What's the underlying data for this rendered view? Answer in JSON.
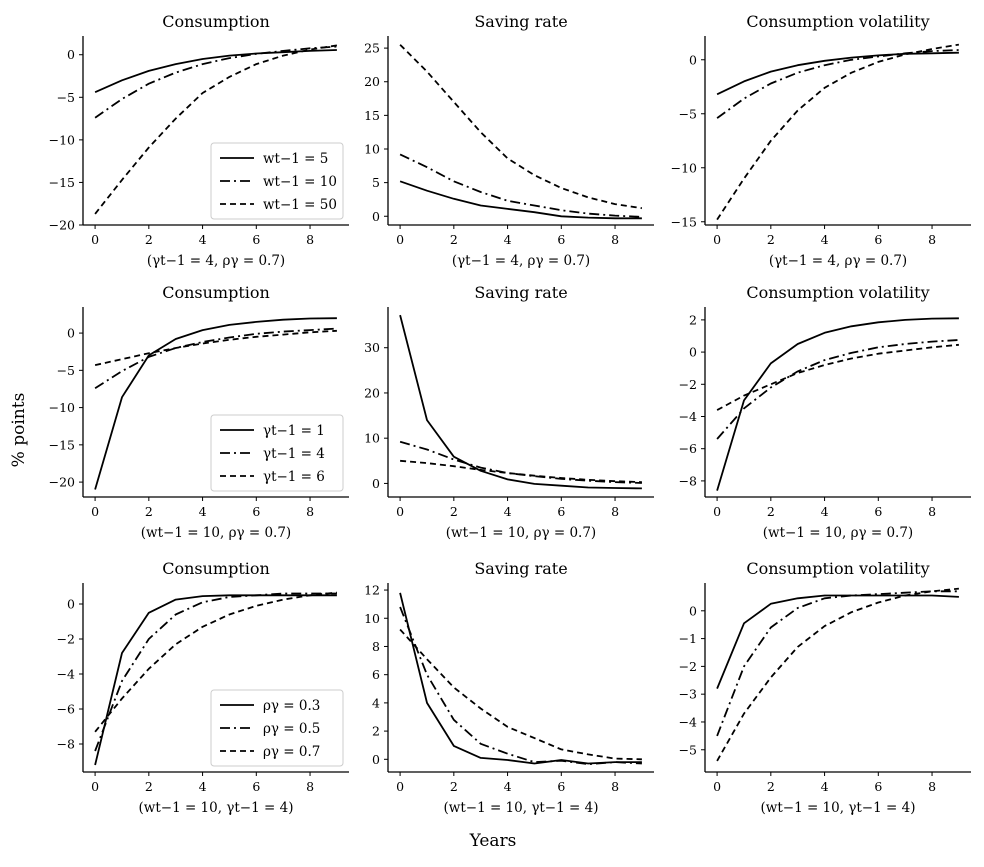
{
  "figure": {
    "ylabel": "% points",
    "xlabel": "Years"
  },
  "chart_data": [
    {
      "type": "line",
      "title": "Consumption",
      "subtitle": "(γt−1 = 4, ργ = 0.7)",
      "xlim": [
        -0.45,
        9.45
      ],
      "ylim": [
        -20,
        2.2
      ],
      "xticks": [
        0,
        2,
        4,
        6,
        8
      ],
      "yticks": [
        0,
        -5,
        -10,
        -15,
        -20
      ],
      "ytick_labels": [
        "0",
        "−5",
        "−10",
        "−15",
        "−20"
      ],
      "x": [
        0,
        1,
        2,
        3,
        4,
        5,
        6,
        7,
        8,
        9
      ],
      "legend": "bottom-right",
      "series": [
        {
          "name": "wt−1 = 5",
          "style": "solid",
          "values": [
            -4.4,
            -3.0,
            -1.9,
            -1.1,
            -0.5,
            -0.1,
            0.15,
            0.3,
            0.45,
            0.55
          ]
        },
        {
          "name": "wt−1 = 10",
          "style": "dashdot",
          "values": [
            -7.4,
            -5.2,
            -3.4,
            -2.1,
            -1.1,
            -0.4,
            0.1,
            0.45,
            0.75,
            0.95
          ]
        },
        {
          "name": "wt−1 = 50",
          "style": "dashed",
          "values": [
            -18.7,
            -14.7,
            -10.9,
            -7.5,
            -4.5,
            -2.6,
            -1.1,
            -0.1,
            0.6,
            1.1
          ]
        }
      ]
    },
    {
      "type": "line",
      "title": "Saving rate",
      "subtitle": "(γt−1 = 4, ργ = 0.7)",
      "xlim": [
        -0.45,
        9.45
      ],
      "ylim": [
        -1.3,
        26.8
      ],
      "xticks": [
        0,
        2,
        4,
        6,
        8
      ],
      "yticks": [
        0,
        5,
        10,
        15,
        20,
        25
      ],
      "ytick_labels": [
        "0",
        "5",
        "10",
        "15",
        "20",
        "25"
      ],
      "x": [
        0,
        1,
        2,
        3,
        4,
        5,
        6,
        7,
        8,
        9
      ],
      "series": [
        {
          "name": "wt−1 = 5",
          "style": "solid",
          "values": [
            5.2,
            3.8,
            2.6,
            1.6,
            1.1,
            0.6,
            0.0,
            -0.2,
            -0.3,
            -0.3
          ]
        },
        {
          "name": "wt−1 = 10",
          "style": "dashdot",
          "values": [
            9.2,
            7.3,
            5.2,
            3.6,
            2.3,
            1.6,
            0.9,
            0.4,
            0.1,
            -0.1
          ]
        },
        {
          "name": "wt−1 = 50",
          "style": "dashed",
          "values": [
            25.5,
            21.5,
            17.0,
            12.5,
            8.6,
            6.1,
            4.2,
            2.8,
            1.8,
            1.2
          ]
        }
      ]
    },
    {
      "type": "line",
      "title": "Consumption volatility",
      "subtitle": "(γt−1 = 4, ργ = 0.7)",
      "xlim": [
        -0.45,
        9.45
      ],
      "ylim": [
        -15.3,
        2.2
      ],
      "xticks": [
        0,
        2,
        4,
        6,
        8
      ],
      "yticks": [
        0,
        -5,
        -10,
        -15
      ],
      "ytick_labels": [
        "0",
        "−5",
        "−10",
        "−15"
      ],
      "x": [
        0,
        1,
        2,
        3,
        4,
        5,
        6,
        7,
        8,
        9
      ],
      "series": [
        {
          "name": "wt−1 = 5",
          "style": "solid",
          "values": [
            -3.2,
            -2.0,
            -1.1,
            -0.5,
            -0.1,
            0.2,
            0.4,
            0.55,
            0.6,
            0.65
          ]
        },
        {
          "name": "wt−1 = 10",
          "style": "dashdot",
          "values": [
            -5.4,
            -3.6,
            -2.2,
            -1.2,
            -0.5,
            0.0,
            0.3,
            0.6,
            0.8,
            0.9
          ]
        },
        {
          "name": "wt−1 = 50",
          "style": "dashed",
          "values": [
            -14.8,
            -11.0,
            -7.5,
            -4.7,
            -2.6,
            -1.2,
            -0.2,
            0.5,
            1.0,
            1.4
          ]
        }
      ]
    },
    {
      "type": "line",
      "title": "Consumption",
      "subtitle": "(wt−1 = 10, ργ = 0.7)",
      "xlim": [
        -0.45,
        9.45
      ],
      "ylim": [
        -22,
        3.5
      ],
      "xticks": [
        0,
        2,
        4,
        6,
        8
      ],
      "yticks": [
        0,
        -5,
        -10,
        -15,
        -20
      ],
      "ytick_labels": [
        "0",
        "−5",
        "−10",
        "−15",
        "−20"
      ],
      "x": [
        0,
        1,
        2,
        3,
        4,
        5,
        6,
        7,
        8,
        9
      ],
      "legend": "bottom-right",
      "series": [
        {
          "name": "γt−1 = 1",
          "style": "solid",
          "values": [
            -21.0,
            -8.6,
            -3.0,
            -0.8,
            0.4,
            1.1,
            1.5,
            1.8,
            1.95,
            2.0
          ]
        },
        {
          "name": "γt−1 = 4",
          "style": "dashdot",
          "values": [
            -7.4,
            -5.1,
            -3.2,
            -2.0,
            -1.2,
            -0.6,
            -0.1,
            0.2,
            0.4,
            0.6
          ]
        },
        {
          "name": "γt−1 = 6",
          "style": "dashed",
          "values": [
            -4.3,
            -3.5,
            -2.7,
            -2.0,
            -1.4,
            -0.9,
            -0.5,
            -0.2,
            0.1,
            0.3
          ]
        }
      ]
    },
    {
      "type": "line",
      "title": "Saving rate",
      "subtitle": "(wt−1 = 10, ργ = 0.7)",
      "xlim": [
        -0.45,
        9.45
      ],
      "ylim": [
        -3,
        39
      ],
      "xticks": [
        0,
        2,
        4,
        6,
        8
      ],
      "yticks": [
        0,
        10,
        20,
        30
      ],
      "ytick_labels": [
        "0",
        "10",
        "20",
        "30"
      ],
      "x": [
        0,
        1,
        2,
        3,
        4,
        5,
        6,
        7,
        8,
        9
      ],
      "series": [
        {
          "name": "γt−1 = 1",
          "style": "solid",
          "values": [
            37.2,
            14.0,
            5.9,
            2.8,
            0.9,
            -0.1,
            -0.5,
            -0.9,
            -1.0,
            -1.1
          ]
        },
        {
          "name": "γt−1 = 4",
          "style": "dashdot",
          "values": [
            9.2,
            7.5,
            5.3,
            3.5,
            2.3,
            1.6,
            1.0,
            0.6,
            0.3,
            0.1
          ]
        },
        {
          "name": "γt−1 = 6",
          "style": "dashed",
          "values": [
            5.0,
            4.5,
            3.8,
            3.0,
            2.3,
            1.7,
            1.2,
            0.8,
            0.5,
            0.3
          ]
        }
      ]
    },
    {
      "type": "line",
      "title": "Consumption volatility",
      "subtitle": "(wt−1 = 10, ργ = 0.7)",
      "xlim": [
        -0.45,
        9.45
      ],
      "ylim": [
        -9,
        2.8
      ],
      "xticks": [
        0,
        2,
        4,
        6,
        8
      ],
      "yticks": [
        2,
        0,
        -2,
        -4,
        -6,
        -8
      ],
      "ytick_labels": [
        "2",
        "0",
        "−2",
        "−4",
        "−6",
        "−8"
      ],
      "x": [
        0,
        1,
        2,
        3,
        4,
        5,
        6,
        7,
        8,
        9
      ],
      "series": [
        {
          "name": "γt−1 = 1",
          "style": "solid",
          "values": [
            -8.6,
            -3.0,
            -0.7,
            0.5,
            1.2,
            1.6,
            1.85,
            2.0,
            2.08,
            2.1
          ]
        },
        {
          "name": "γt−1 = 4",
          "style": "dashdot",
          "values": [
            -5.4,
            -3.5,
            -2.2,
            -1.2,
            -0.5,
            -0.05,
            0.3,
            0.5,
            0.65,
            0.75
          ]
        },
        {
          "name": "γt−1 = 6",
          "style": "dashed",
          "values": [
            -3.6,
            -2.7,
            -2.0,
            -1.3,
            -0.8,
            -0.4,
            -0.1,
            0.1,
            0.3,
            0.45
          ]
        }
      ]
    },
    {
      "type": "line",
      "title": "Consumption",
      "subtitle": "(wt−1 = 10, γt−1 = 4)",
      "xlim": [
        -0.45,
        9.45
      ],
      "ylim": [
        -9.6,
        1.2
      ],
      "xticks": [
        0,
        2,
        4,
        6,
        8
      ],
      "yticks": [
        0,
        -2,
        -4,
        -6,
        -8
      ],
      "ytick_labels": [
        "0",
        "−2",
        "−4",
        "−6",
        "−8"
      ],
      "x": [
        0,
        1,
        2,
        3,
        4,
        5,
        6,
        7,
        8,
        9
      ],
      "legend": "bottom-right",
      "series": [
        {
          "name": "ργ = 0.3",
          "style": "solid",
          "values": [
            -9.2,
            -2.8,
            -0.5,
            0.25,
            0.45,
            0.5,
            0.5,
            0.5,
            0.5,
            0.5
          ]
        },
        {
          "name": "ργ = 0.5",
          "style": "dashdot",
          "values": [
            -8.4,
            -4.4,
            -2.0,
            -0.6,
            0.1,
            0.4,
            0.5,
            0.6,
            0.6,
            0.6
          ]
        },
        {
          "name": "ργ = 0.7",
          "style": "dashed",
          "values": [
            -7.3,
            -5.4,
            -3.7,
            -2.3,
            -1.3,
            -0.6,
            -0.1,
            0.25,
            0.5,
            0.65
          ]
        }
      ]
    },
    {
      "type": "line",
      "title": "Saving rate",
      "subtitle": "(wt−1 = 10, γt−1 = 4)",
      "xlim": [
        -0.45,
        9.45
      ],
      "ylim": [
        -0.9,
        12.5
      ],
      "xticks": [
        0,
        2,
        4,
        6,
        8
      ],
      "yticks": [
        0,
        2,
        4,
        6,
        8,
        10,
        12
      ],
      "ytick_labels": [
        "0",
        "2",
        "4",
        "6",
        "8",
        "10",
        "12"
      ],
      "x": [
        0,
        1,
        2,
        3,
        4,
        5,
        6,
        7,
        8,
        9
      ],
      "series": [
        {
          "name": "ργ = 0.3",
          "style": "solid",
          "values": [
            11.8,
            4.0,
            0.95,
            0.1,
            -0.05,
            -0.3,
            -0.05,
            -0.3,
            -0.2,
            -0.2
          ]
        },
        {
          "name": "ργ = 0.5",
          "style": "dashdot",
          "values": [
            10.8,
            6.0,
            2.8,
            1.1,
            0.4,
            -0.2,
            -0.1,
            -0.35,
            -0.2,
            -0.3
          ]
        },
        {
          "name": "ργ = 0.7",
          "style": "dashed",
          "values": [
            9.2,
            7.1,
            5.1,
            3.6,
            2.3,
            1.5,
            0.7,
            0.35,
            0.05,
            0.0
          ]
        }
      ]
    },
    {
      "type": "line",
      "title": "Consumption volatility",
      "subtitle": "(wt−1 = 10, γt−1 = 4)",
      "xlim": [
        -0.45,
        9.45
      ],
      "ylim": [
        -5.8,
        1.0
      ],
      "xticks": [
        0,
        2,
        4,
        6,
        8
      ],
      "yticks": [
        0,
        -1,
        -2,
        -3,
        -4,
        -5
      ],
      "ytick_labels": [
        "0",
        "−1",
        "−2",
        "−3",
        "−4",
        "−5"
      ],
      "x": [
        0,
        1,
        2,
        3,
        4,
        5,
        6,
        7,
        8,
        9
      ],
      "series": [
        {
          "name": "ργ = 0.3",
          "style": "solid",
          "values": [
            -2.8,
            -0.45,
            0.25,
            0.45,
            0.55,
            0.55,
            0.55,
            0.55,
            0.55,
            0.5
          ]
        },
        {
          "name": "ργ = 0.5",
          "style": "dashdot",
          "values": [
            -4.5,
            -2.0,
            -0.6,
            0.1,
            0.45,
            0.55,
            0.6,
            0.65,
            0.7,
            0.7
          ]
        },
        {
          "name": "ργ = 0.7",
          "style": "dashed",
          "values": [
            -5.4,
            -3.7,
            -2.4,
            -1.3,
            -0.55,
            -0.05,
            0.3,
            0.55,
            0.7,
            0.8
          ]
        }
      ]
    }
  ]
}
